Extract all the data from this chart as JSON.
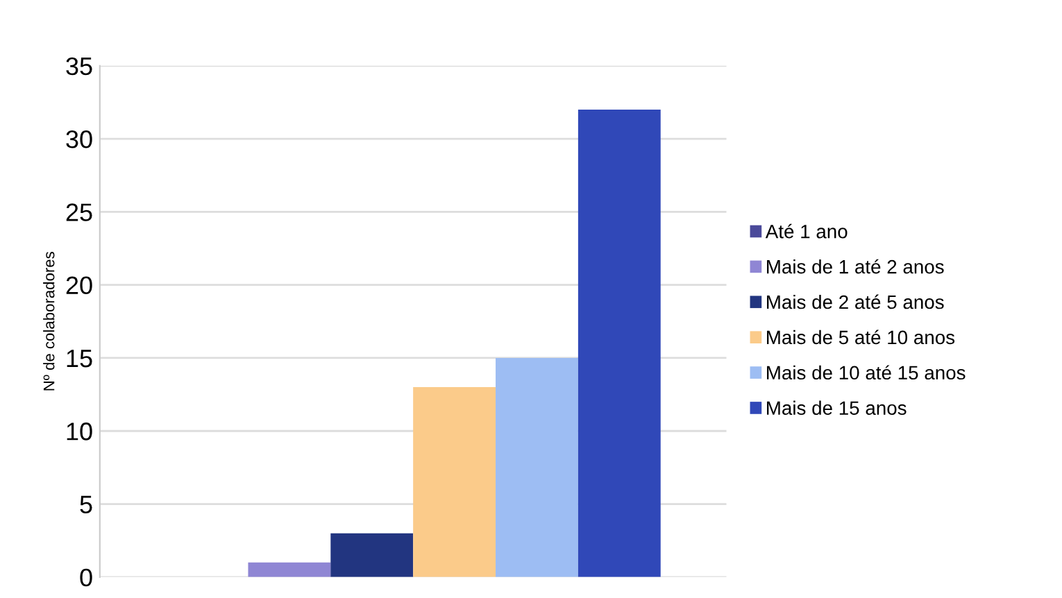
{
  "chart_data": {
    "type": "bar",
    "ylabel": "Nº de colaboradores",
    "categories": [
      null
    ],
    "series": [
      {
        "name": "Até 1 ano",
        "color": "#4b4a9a",
        "values": [
          0
        ]
      },
      {
        "name": "Mais de 1 até 2 anos",
        "color": "#8f86d4",
        "values": [
          1
        ]
      },
      {
        "name": "Mais de 2 até 5 anos",
        "color": "#223580",
        "values": [
          3
        ]
      },
      {
        "name": "Mais de 5 até 10 anos",
        "color": "#fbcb8a",
        "values": [
          13
        ]
      },
      {
        "name": "Mais de 10 até 15 anos",
        "color": "#9dbdf3",
        "values": [
          15
        ]
      },
      {
        "name": "Mais de 15 anos",
        "color": "#3048b8",
        "values": [
          32
        ]
      }
    ],
    "ylim": [
      0,
      35
    ],
    "yticks": [
      0,
      5,
      10,
      15,
      20,
      25,
      30,
      35
    ],
    "grid": "y",
    "legend": "right"
  }
}
